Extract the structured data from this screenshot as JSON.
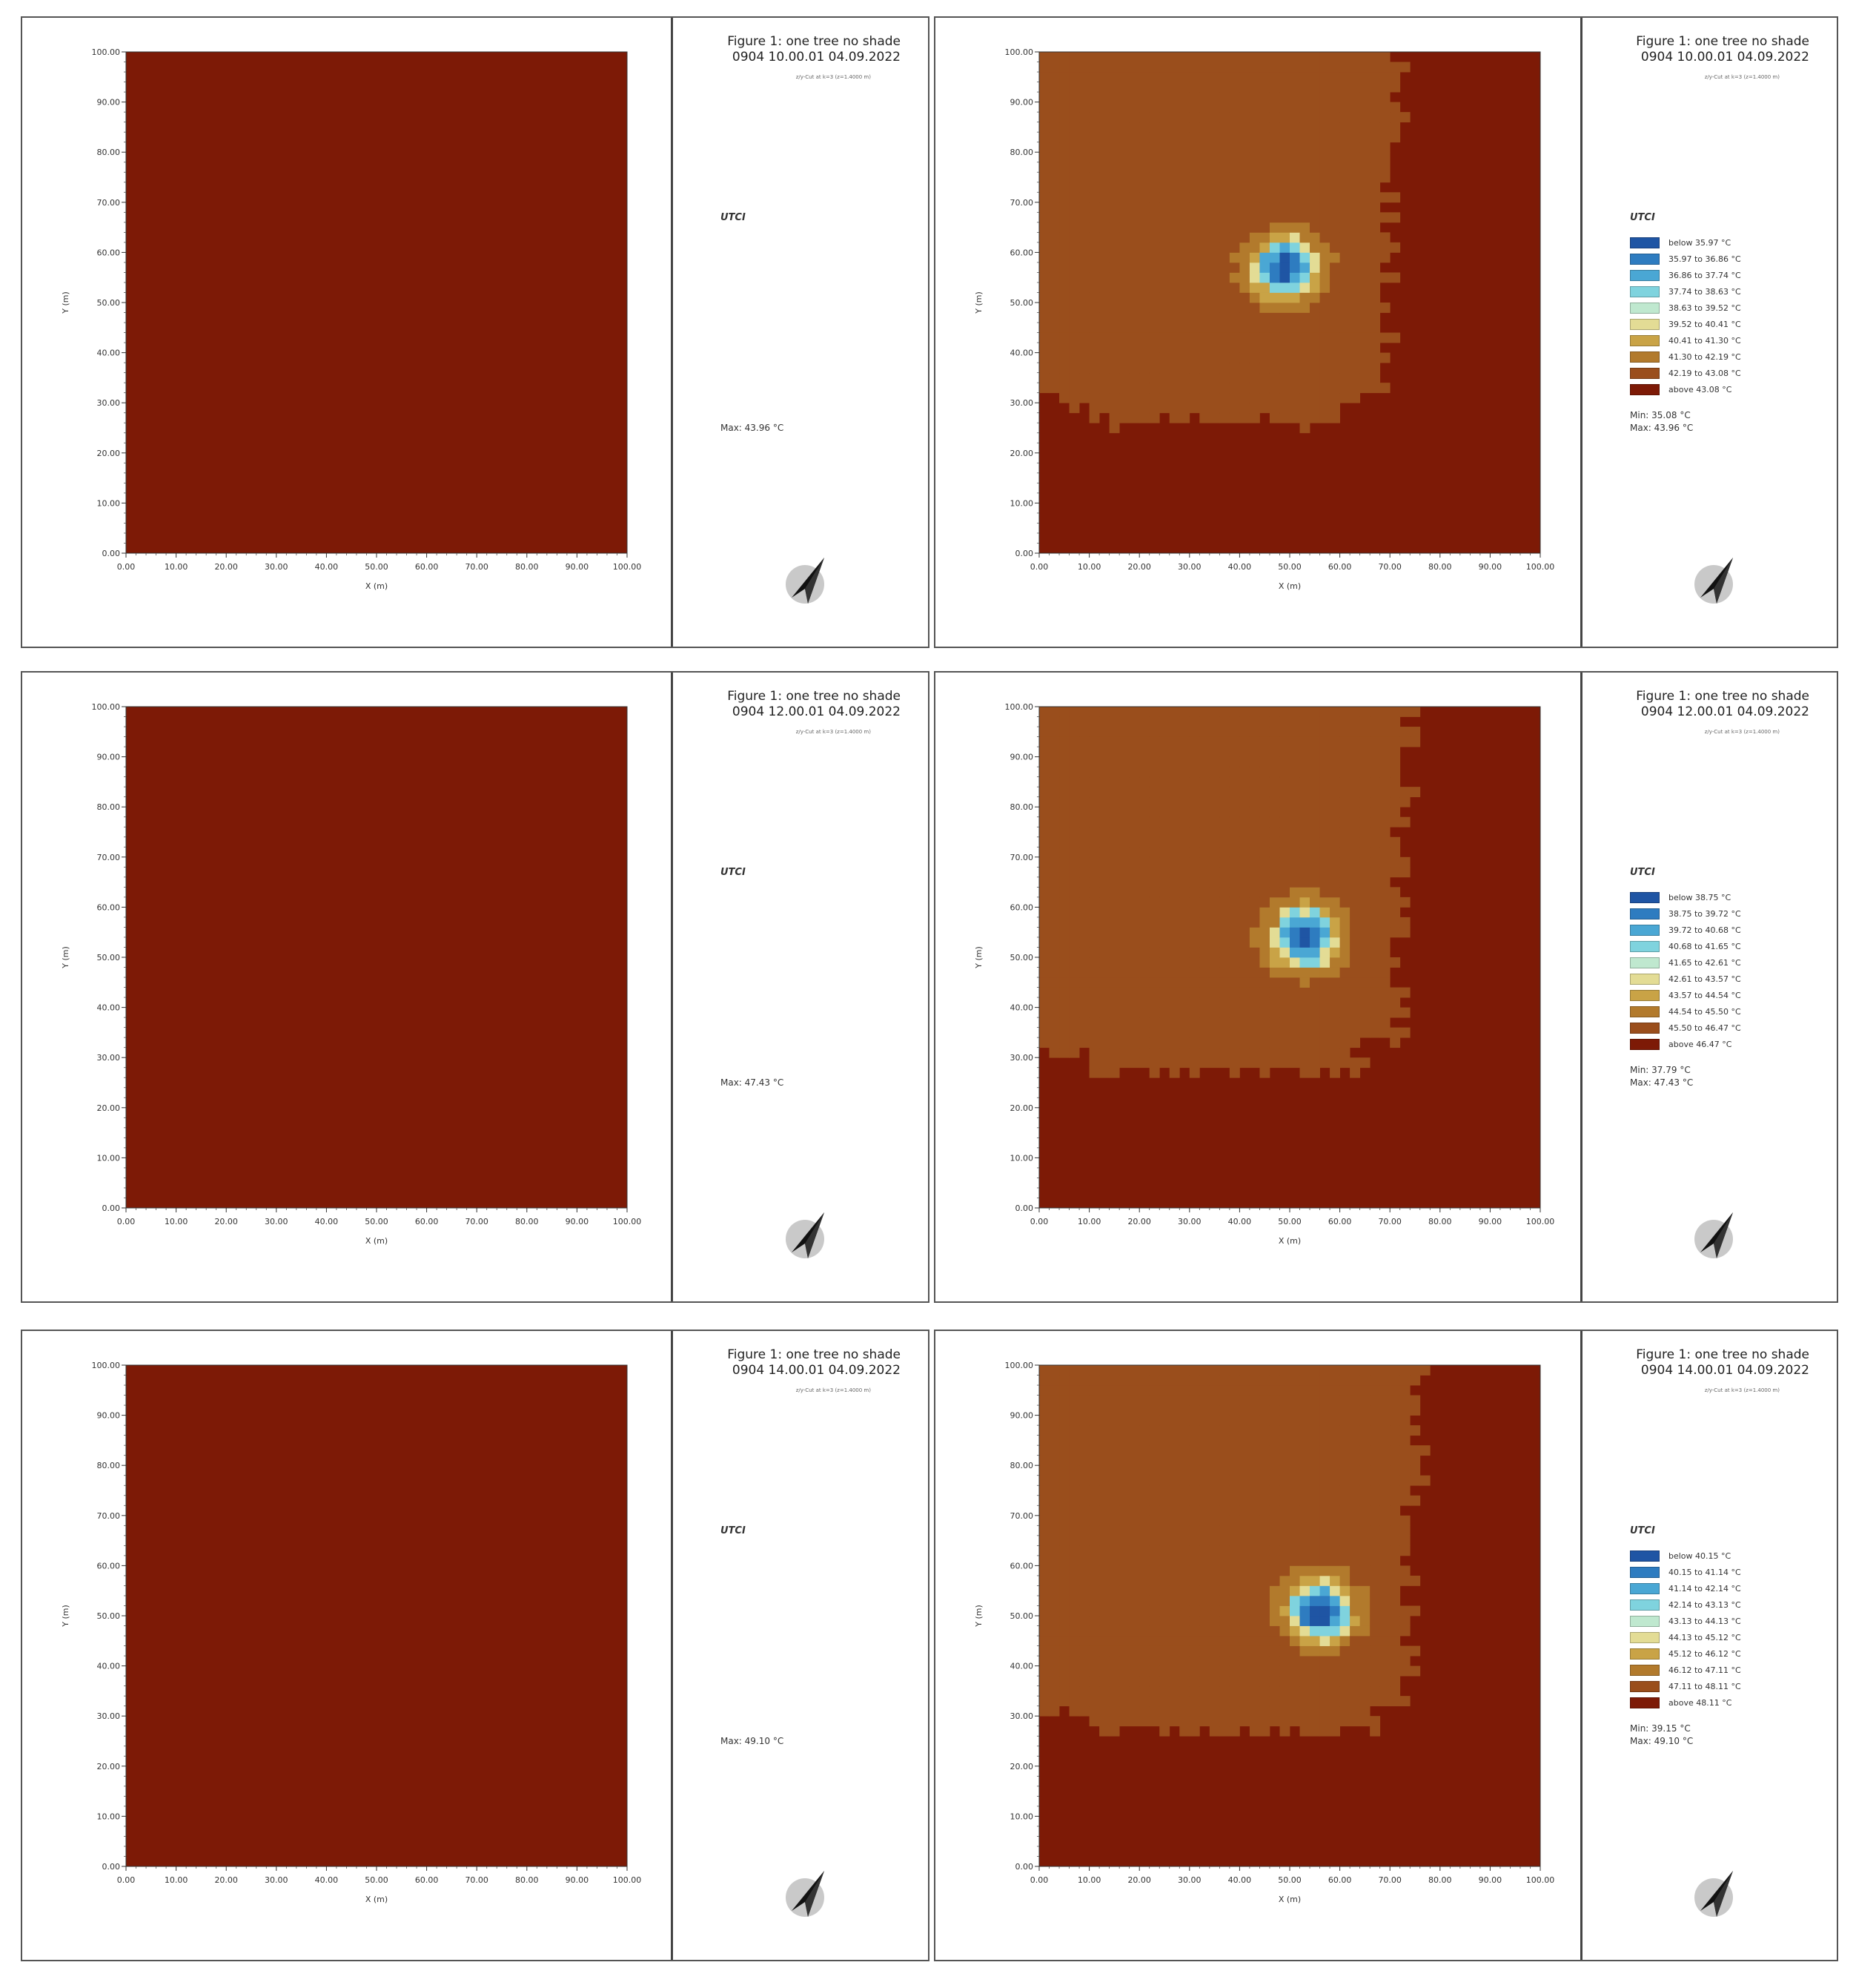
{
  "figure": {
    "title_line1": "Figure 1: one tree no shade",
    "subtitle": "z/y-Cut at k=3 (z=1.4000 m)",
    "variable": "UTCI",
    "xlabel": "X (m)",
    "ylabel": "Y (m)",
    "ticks": [
      "0.00",
      "10.00",
      "20.00",
      "30.00",
      "40.00",
      "50.00",
      "60.00",
      "70.00",
      "80.00",
      "90.00",
      "100.00"
    ],
    "background_color": "#7d1a06"
  },
  "chart_data": [
    {
      "type": "heatmap",
      "time_label": "0904 10.00.01 04.09.2022",
      "variable": "UTCI",
      "max_label": "Max: 43.96 °C",
      "xlim": [
        0,
        100
      ],
      "ylim": [
        0,
        100
      ],
      "uniform_color": "#7d1a06"
    },
    {
      "type": "heatmap",
      "time_label": "0904 10.00.01 04.09.2022",
      "variable": "UTCI",
      "xlim": [
        0,
        100
      ],
      "ylim": [
        0,
        100
      ],
      "legend": [
        {
          "label": "below 35.97 °C",
          "color": "#1f55a4"
        },
        {
          "label": "35.97 to 36.86 °C",
          "color": "#2e7cc0"
        },
        {
          "label": "36.86 to 37.74 °C",
          "color": "#4aa7d4"
        },
        {
          "label": "37.74 to 38.63 °C",
          "color": "#7fd3de"
        },
        {
          "label": "38.63 to 39.52 °C",
          "color": "#bfe8cf"
        },
        {
          "label": "39.52 to 40.41 °C",
          "color": "#e3dc95"
        },
        {
          "label": "40.41 to 41.30 °C",
          "color": "#c9a346"
        },
        {
          "label": "41.30 to 42.19 °C",
          "color": "#b27a2c"
        },
        {
          "label": "42.19 to 43.08 °C",
          "color": "#9a4e1c"
        },
        {
          "label": "above 43.08 °C",
          "color": "#7d1a06"
        }
      ],
      "min_label": "Min: 35.08 °C",
      "max_label": "Max: 43.96 °C",
      "zone_region": {
        "x_max": 70,
        "y_min": 26
      },
      "cool_spot_center": [
        49,
        57
      ]
    },
    {
      "type": "heatmap",
      "time_label": "0904 12.00.01 04.09.2022",
      "variable": "UTCI",
      "max_label": "Max: 47.43 °C",
      "xlim": [
        0,
        100
      ],
      "ylim": [
        0,
        100
      ],
      "uniform_color": "#7d1a06"
    },
    {
      "type": "heatmap",
      "time_label": "0904 12.00.01 04.09.2022",
      "variable": "UTCI",
      "xlim": [
        0,
        100
      ],
      "ylim": [
        0,
        100
      ],
      "legend": [
        {
          "label": "below 38.75 °C",
          "color": "#1f55a4"
        },
        {
          "label": "38.75 to 39.72 °C",
          "color": "#2e7cc0"
        },
        {
          "label": "39.72 to 40.68 °C",
          "color": "#4aa7d4"
        },
        {
          "label": "40.68 to 41.65 °C",
          "color": "#7fd3de"
        },
        {
          "label": "41.65 to 42.61 °C",
          "color": "#bfe8cf"
        },
        {
          "label": "42.61 to 43.57 °C",
          "color": "#e3dc95"
        },
        {
          "label": "43.57 to 44.54 °C",
          "color": "#c9a346"
        },
        {
          "label": "44.54 to 45.50 °C",
          "color": "#b27a2c"
        },
        {
          "label": "45.50 to 46.47 °C",
          "color": "#9a4e1c"
        },
        {
          "label": "above 46.47 °C",
          "color": "#7d1a06"
        }
      ],
      "min_label": "Min: 37.79 °C",
      "max_label": "Max: 47.43 °C",
      "zone_region": {
        "x_max": 72,
        "y_min": 27
      },
      "cool_spot_center": [
        53,
        54
      ]
    },
    {
      "type": "heatmap",
      "time_label": "0904 14.00.01 04.09.2022",
      "variable": "UTCI",
      "max_label": "Max: 49.10 °C",
      "xlim": [
        0,
        100
      ],
      "ylim": [
        0,
        100
      ],
      "uniform_color": "#7d1a06"
    },
    {
      "type": "heatmap",
      "time_label": "0904 14.00.01 04.09.2022",
      "variable": "UTCI",
      "xlim": [
        0,
        100
      ],
      "ylim": [
        0,
        100
      ],
      "legend": [
        {
          "label": "below 40.15 °C",
          "color": "#1f55a4"
        },
        {
          "label": "40.15 to 41.14 °C",
          "color": "#2e7cc0"
        },
        {
          "label": "41.14 to 42.14 °C",
          "color": "#4aa7d4"
        },
        {
          "label": "42.14 to 43.13 °C",
          "color": "#7fd3de"
        },
        {
          "label": "43.13 to 44.13 °C",
          "color": "#bfe8cf"
        },
        {
          "label": "44.13 to 45.12 °C",
          "color": "#e3dc95"
        },
        {
          "label": "45.12 to 46.12 °C",
          "color": "#c9a346"
        },
        {
          "label": "46.12 to 47.11 °C",
          "color": "#b27a2c"
        },
        {
          "label": "47.11 to 48.11 °C",
          "color": "#9a4e1c"
        },
        {
          "label": "above 48.11 °C",
          "color": "#7d1a06"
        }
      ],
      "min_label": "Min: 39.15 °C",
      "max_label": "Max: 49.10 °C",
      "zone_region": {
        "x_max": 74,
        "y_min": 27
      },
      "cool_spot_center": [
        56,
        51
      ]
    }
  ]
}
